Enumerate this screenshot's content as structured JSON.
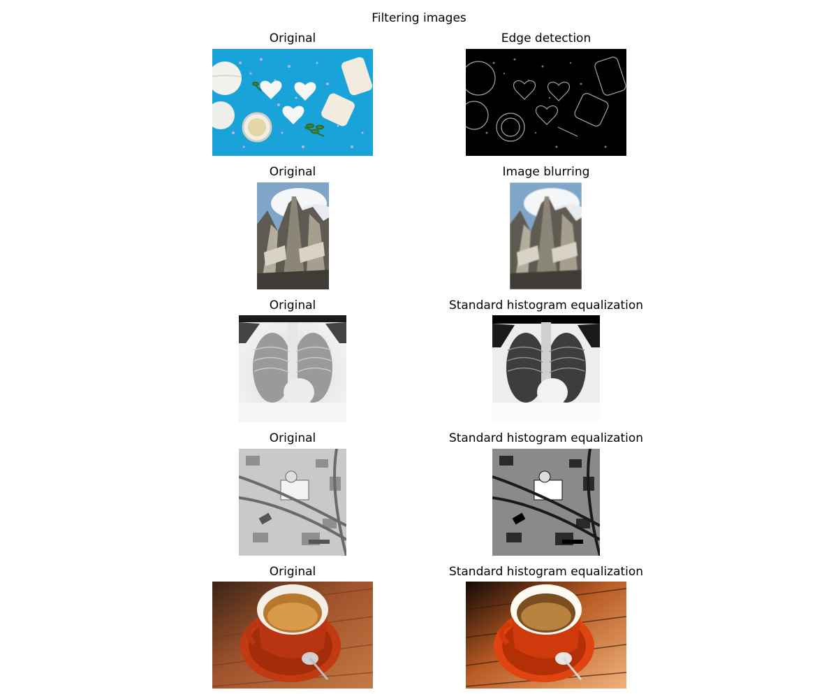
{
  "figure": {
    "title": "Filtering images"
  },
  "rows": [
    {
      "left_title": "Original",
      "right_title": "Edge detection",
      "left_image": "soap-bath-salts-photo",
      "right_image": "soap-edge-detection-photo"
    },
    {
      "left_title": "Original",
      "right_title": "Image blurring",
      "left_image": "building-spires-photo",
      "right_image": "building-spires-blurred-photo"
    },
    {
      "left_title": "Original",
      "right_title": "Standard histogram equalization",
      "left_image": "chest-xray-photo",
      "right_image": "chest-xray-equalized-photo"
    },
    {
      "left_title": "Original",
      "right_title": "Standard histogram equalization",
      "left_image": "aerial-city-photo",
      "right_image": "aerial-city-equalized-photo"
    },
    {
      "left_title": "Original",
      "right_title": "Standard histogram equalization",
      "left_image": "espresso-cup-photo",
      "right_image": "espresso-cup-equalized-photo"
    }
  ]
}
